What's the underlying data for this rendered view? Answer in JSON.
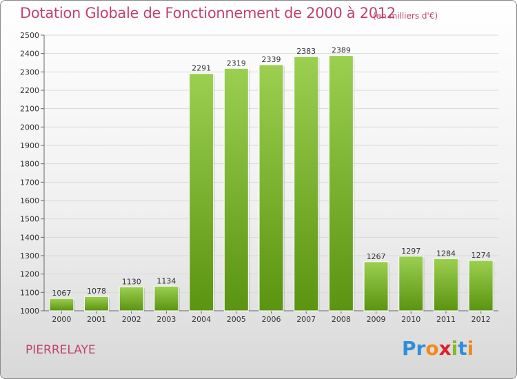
{
  "title": "Dotation Globale de Fonctionnement de 2000 à 2012",
  "unit": "(en milliers d'€)",
  "city": "PIERRELAYE",
  "logo": {
    "text": "Proxiti",
    "letters": [
      "P",
      "r",
      "o",
      "x",
      "i",
      "t",
      "i"
    ],
    "colors": [
      "#2f8fd8",
      "#2f8fd8",
      "#f08a1c",
      "#d8242f",
      "#86b820",
      "#2f8fd8",
      "#f08a1c"
    ]
  },
  "colors": {
    "bar_top": "#9ccf50",
    "bar_bottom": "#5a9410",
    "text_accent": "#c0436b",
    "grid": "#d9d9d9"
  },
  "chart_data": {
    "type": "bar",
    "categories": [
      "2000",
      "2001",
      "2002",
      "2003",
      "2004",
      "2005",
      "2006",
      "2007",
      "2008",
      "2009",
      "2010",
      "2011",
      "2012"
    ],
    "values": [
      1067,
      1078,
      1130,
      1134,
      2291,
      2319,
      2339,
      2383,
      2389,
      1267,
      1297,
      1284,
      1274
    ],
    "title": "Dotation Globale de Fonctionnement de 2000 à 2012",
    "ylim": [
      1000,
      2500
    ],
    "yticks": [
      1000,
      1100,
      1200,
      1300,
      1400,
      1500,
      1600,
      1700,
      1800,
      1900,
      2000,
      2100,
      2200,
      2300,
      2400,
      2500
    ],
    "grid": true,
    "data_labels": true
  }
}
